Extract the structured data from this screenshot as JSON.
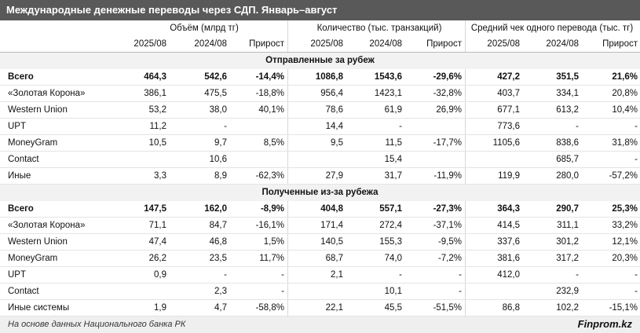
{
  "title": "Международные денежные переводы через СДП. Январь–август",
  "header": {
    "groups": [
      "Объём (млрд тг)",
      "Количество (тыс. транзакций)",
      "Средний чек одного перевода (тыс. тг)"
    ],
    "columns": [
      "2025/08",
      "2024/08",
      "Прирост",
      "2025/08",
      "2024/08",
      "Прирост",
      "2025/08",
      "2024/08",
      "Прирост"
    ]
  },
  "sections": [
    {
      "title": "Отправленные за рубеж",
      "rows": [
        {
          "label": "Всего",
          "cells": [
            "464,3",
            "542,6",
            "-14,4%",
            "1086,8",
            "1543,6",
            "-29,6%",
            "427,2",
            "351,5",
            "21,6%"
          ]
        },
        {
          "label": "«Золотая Корона»",
          "cells": [
            "386,1",
            "475,5",
            "-18,8%",
            "956,4",
            "1423,1",
            "-32,8%",
            "403,7",
            "334,1",
            "20,8%"
          ]
        },
        {
          "label": "Western Union",
          "cells": [
            "53,2",
            "38,0",
            "40,1%",
            "78,6",
            "61,9",
            "26,9%",
            "677,1",
            "613,2",
            "10,4%"
          ]
        },
        {
          "label": "UPT",
          "cells": [
            "11,2",
            "-",
            null,
            "14,4",
            "-",
            null,
            "773,6",
            "-",
            "-"
          ]
        },
        {
          "label": "MoneyGram",
          "cells": [
            "10,5",
            "9,7",
            "8,5%",
            "9,5",
            "11,5",
            "-17,7%",
            "1105,6",
            "838,6",
            "31,8%"
          ]
        },
        {
          "label": "Contact",
          "cells": [
            null,
            "10,6",
            null,
            null,
            "15,4",
            null,
            null,
            "685,7",
            "-"
          ]
        },
        {
          "label": "Иные",
          "cells": [
            "3,3",
            "8,9",
            "-62,3%",
            "27,9",
            "31,7",
            "-11,9%",
            "119,9",
            "280,0",
            "-57,2%"
          ]
        }
      ]
    },
    {
      "title": "Полученные из-за рубежа",
      "rows": [
        {
          "label": "Всего",
          "cells": [
            "147,5",
            "162,0",
            "-8,9%",
            "404,8",
            "557,1",
            "-27,3%",
            "364,3",
            "290,7",
            "25,3%"
          ]
        },
        {
          "label": "«Золотая Корона»",
          "cells": [
            "71,1",
            "84,7",
            "-16,1%",
            "171,4",
            "272,4",
            "-37,1%",
            "414,5",
            "311,1",
            "33,2%"
          ]
        },
        {
          "label": "Western Union",
          "cells": [
            "47,4",
            "46,8",
            "1,5%",
            "140,5",
            "155,3",
            "-9,5%",
            "337,6",
            "301,2",
            "12,1%"
          ]
        },
        {
          "label": "MoneyGram",
          "cells": [
            "26,2",
            "23,5",
            "11,7%",
            "68,7",
            "74,0",
            "-7,2%",
            "381,6",
            "317,2",
            "20,3%"
          ]
        },
        {
          "label": "UPT",
          "cells": [
            "0,9",
            "-",
            "-",
            "2,1",
            "-",
            "-",
            "412,0",
            "-",
            "-"
          ]
        },
        {
          "label": "Contact",
          "cells": [
            null,
            "2,3",
            "-",
            null,
            "10,1",
            "-",
            null,
            "232,9",
            "-"
          ]
        },
        {
          "label": "Иные системы",
          "cells": [
            "1,9",
            "4,7",
            "-58,8%",
            "22,1",
            "45,5",
            "-51,5%",
            "86,8",
            "102,2",
            "-15,1%"
          ]
        }
      ]
    }
  ],
  "footer": {
    "source": "На основе данных Национального банка РК",
    "brand": "Finprom.kz"
  }
}
